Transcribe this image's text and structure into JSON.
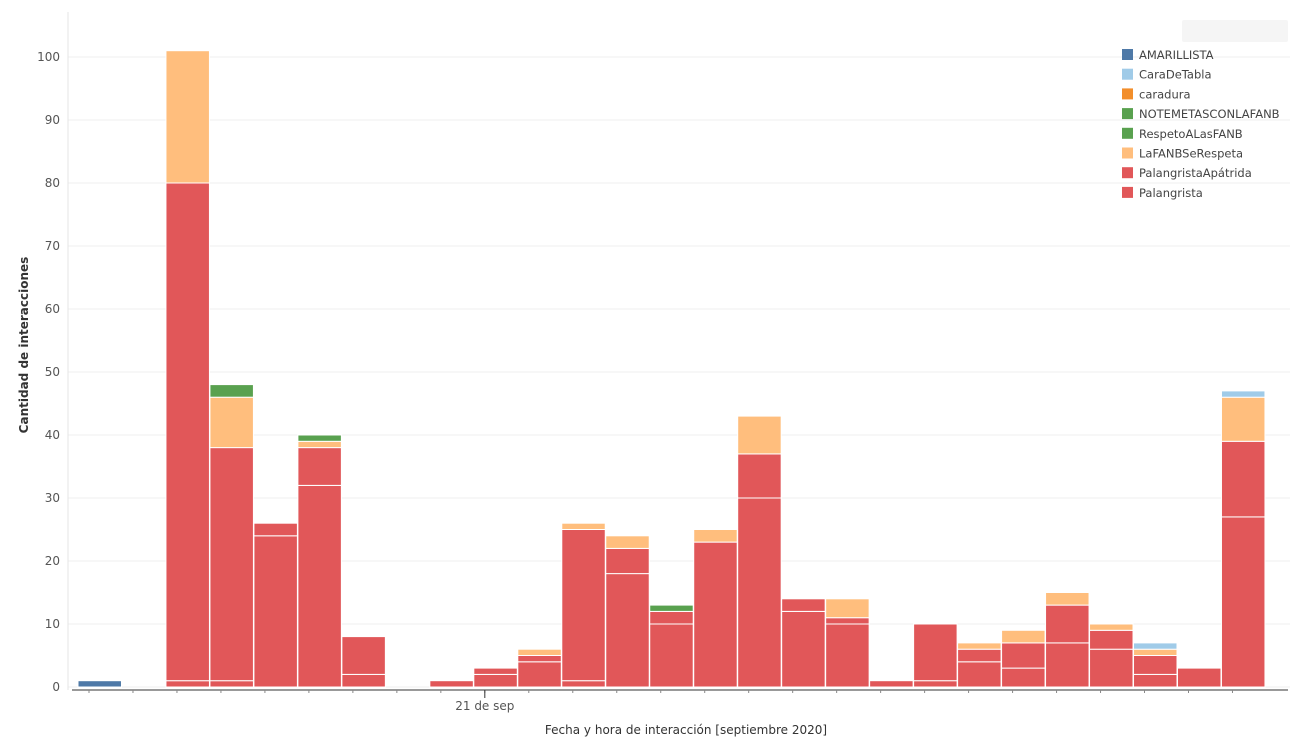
{
  "chart_data": {
    "type": "bar",
    "stacked": true,
    "x_label": "Fecha y hora de interacción [septiembre 2020]",
    "y_label": "Cantidad de interacciones",
    "x_tick_labels": [
      {
        "bin": 9,
        "label": "21 de sep"
      }
    ],
    "ylim": [
      0,
      105
    ],
    "y_ticks": [
      0,
      10,
      20,
      30,
      40,
      50,
      60,
      70,
      80,
      90,
      100
    ],
    "grid": "horizontal",
    "legend_position": "top-right",
    "colors": {
      "AMARILLISTA": "#4e79a7",
      "CaraDeTabla": "#a0cbe8",
      "caradura": "#f28e2b",
      "NOTEMETASCONLAFANB": "#59a14f",
      "RespetoALasFANB": "#59a14f",
      "LaFANBSeRespeta": "#ffbe7d",
      "PalangristaApátrida": "#e15759",
      "Palangrista": "#e15759"
    },
    "legend_order": [
      "AMARILLISTA",
      "CaraDeTabla",
      "caradura",
      "NOTEMETASCONLAFANB",
      "RespetoALasFANB",
      "LaFANBSeRespeta",
      "PalangristaApátrida",
      "Palangrista"
    ],
    "stack_order": [
      "Palangrista",
      "PalangristaApátrida",
      "LaFANBSeRespeta",
      "RespetoALasFANB",
      "NOTEMETASCONLAFANB",
      "caradura",
      "CaraDeTabla",
      "AMARILLISTA"
    ],
    "bins": [
      {
        "bin": 0,
        "values": {
          "AMARILLISTA": 1
        }
      },
      {
        "bin": 2,
        "values": {
          "Palangrista": 1,
          "PalangristaApátrida": 79,
          "LaFANBSeRespeta": 21
        },
        "_note": "values approximate"
      },
      {
        "bin": 3,
        "values": {
          "Palangrista": 1,
          "PalangristaApátrida": 37,
          "LaFANBSeRespeta": 8,
          "RespetoALasFANB": 2
        }
      },
      {
        "bin": 4,
        "values": {
          "Palangrista": 24,
          "PalangristaApátrida": 2
        }
      },
      {
        "bin": 5,
        "values": {
          "Palangrista": 32,
          "PalangristaApátrida": 6,
          "LaFANBSeRespeta": 1,
          "RespetoALasFANB": 1
        }
      },
      {
        "bin": 6,
        "values": {
          "Palangrista": 2,
          "PalangristaApátrida": 6
        }
      },
      {
        "bin": 8,
        "values": {
          "Palangrista": 1
        }
      },
      {
        "bin": 9,
        "values": {
          "Palangrista": 2,
          "PalangristaApátrida": 1
        }
      },
      {
        "bin": 10,
        "values": {
          "Palangrista": 4,
          "PalangristaApátrida": 1,
          "LaFANBSeRespeta": 1
        }
      },
      {
        "bin": 11,
        "values": {
          "Palangrista": 1,
          "PalangristaApátrida": 24,
          "LaFANBSeRespeta": 1
        }
      },
      {
        "bin": 12,
        "values": {
          "Palangrista": 18,
          "PalangristaApátrida": 4,
          "LaFANBSeRespeta": 2
        }
      },
      {
        "bin": 13,
        "values": {
          "Palangrista": 10,
          "PalangristaApátrida": 2,
          "RespetoALasFANB": 1
        }
      },
      {
        "bin": 14,
        "values": {
          "Palangrista": 23,
          "LaFANBSeRespeta": 2
        }
      },
      {
        "bin": 15,
        "values": {
          "Palangrista": 30,
          "PalangristaApátrida": 7,
          "LaFANBSeRespeta": 6
        }
      },
      {
        "bin": 16,
        "values": {
          "Palangrista": 12,
          "PalangristaApátrida": 2
        }
      },
      {
        "bin": 17,
        "values": {
          "Palangrista": 10,
          "PalangristaApátrida": 1,
          "LaFANBSeRespeta": 3
        }
      },
      {
        "bin": 18,
        "values": {
          "Palangrista": 1
        }
      },
      {
        "bin": 19,
        "values": {
          "Palangrista": 1,
          "PalangristaApátrida": 9
        }
      },
      {
        "bin": 20,
        "values": {
          "Palangrista": 4,
          "PalangristaApátrida": 2,
          "LaFANBSeRespeta": 1
        }
      },
      {
        "bin": 21,
        "values": {
          "Palangrista": 3,
          "PalangristaApátrida": 4,
          "LaFANBSeRespeta": 2
        }
      },
      {
        "bin": 22,
        "values": {
          "Palangrista": 7,
          "PalangristaApátrida": 6,
          "LaFANBSeRespeta": 2
        }
      },
      {
        "bin": 23,
        "values": {
          "Palangrista": 6,
          "PalangristaApátrida": 3,
          "LaFANBSeRespeta": 1
        }
      },
      {
        "bin": 24,
        "values": {
          "Palangrista": 2,
          "PalangristaApátrida": 3,
          "LaFANBSeRespeta": 1,
          "CaraDeTabla": 1
        }
      },
      {
        "bin": 25,
        "values": {
          "Palangrista": 3
        }
      },
      {
        "bin": 26,
        "values": {
          "Palangrista": 27,
          "PalangristaApátrida": 12,
          "LaFANBSeRespeta": 7,
          "CaraDeTabla": 1
        }
      }
    ],
    "bin_count": 27
  }
}
